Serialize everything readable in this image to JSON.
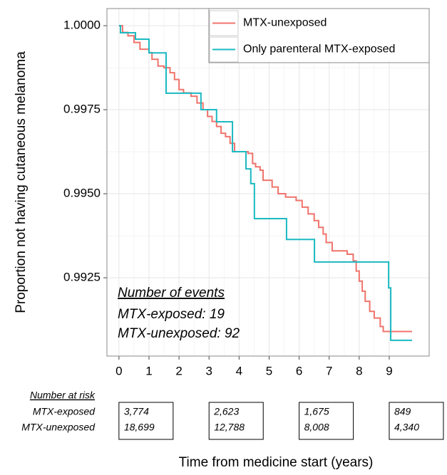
{
  "chart_data": {
    "type": "step",
    "y_label": "Proportion not having cutaneous melanoma",
    "x_label": "Time from medicine start (years)",
    "xlim": [
      -0.4,
      10.33
    ],
    "ylim": [
      0.99017,
      1.00051
    ],
    "xticks": [
      0,
      1,
      2,
      3,
      4,
      5,
      6,
      7,
      8,
      9
    ],
    "yticks": [
      {
        "value": 1.0,
        "label": "1.0000"
      },
      0.9975,
      {
        "value": 0.995,
        "label": "0.9950"
      },
      0.9925
    ],
    "grid": true,
    "minor_grid": true,
    "legend": "top-right",
    "series": [
      {
        "name": "MTX-unexposed",
        "color": "#f0736b",
        "x": [
          0,
          0.12,
          0.3,
          0.5,
          0.7,
          1.0,
          1.1,
          1.3,
          1.5,
          1.7,
          1.85,
          2.0,
          2.15,
          2.4,
          2.6,
          2.8,
          2.95,
          3.1,
          3.25,
          3.4,
          3.55,
          3.7,
          3.85,
          4.3,
          4.45,
          4.55,
          4.7,
          4.8,
          5.1,
          5.3,
          5.55,
          5.9,
          6.1,
          6.3,
          6.5,
          6.65,
          6.8,
          6.9,
          7.1,
          7.6,
          7.8,
          7.9,
          8.0,
          8.1,
          8.2,
          8.35,
          8.5,
          8.7,
          8.8,
          9.76
        ],
        "values": [
          1.0,
          0.9998,
          0.9997,
          0.9995,
          0.9993,
          0.9992,
          0.999,
          0.9988,
          0.99875,
          0.9986,
          0.9984,
          0.9981,
          0.998,
          0.9979,
          0.9977,
          0.9975,
          0.9973,
          0.99715,
          0.997,
          0.9968,
          0.9967,
          0.9965,
          0.99625,
          0.9962,
          0.9959,
          0.9958,
          0.9957,
          0.9954,
          0.9952,
          0.995,
          0.9949,
          0.9948,
          0.9946,
          0.9944,
          0.9942,
          0.994,
          0.9938,
          0.99355,
          0.9933,
          0.9932,
          0.993,
          0.9927,
          0.9924,
          0.9921,
          0.9918,
          0.9915,
          0.9913,
          0.99105,
          0.9909,
          0.9909
        ]
      },
      {
        "name": "Only parenteral MTX-exposed",
        "color": "#1ab9c1",
        "x": [
          0,
          0.05,
          0.55,
          1.0,
          1.57,
          2.73,
          3.25,
          3.78,
          4.23,
          4.39,
          4.51,
          5.58,
          6.51,
          8.98,
          9.05,
          9.76
        ],
        "values": [
          1.0,
          0.99979,
          0.9996,
          0.99919,
          0.99799,
          0.9975,
          0.99714,
          0.99625,
          0.99574,
          0.9953,
          0.99426,
          0.99364,
          0.99297,
          0.9922,
          0.99064,
          0.99064
        ]
      }
    ],
    "events_annotation": {
      "title": "Number of events",
      "lines": [
        "MTX-exposed: 19",
        "MTX-unexposed: 92"
      ]
    },
    "risk_table": {
      "title": "Number at risk",
      "row_names": [
        "MTX-exposed",
        "MTX-unexposed"
      ],
      "times": [
        0,
        3,
        6,
        9
      ],
      "cells": [
        [
          "3,774",
          "18,699"
        ],
        [
          "2,623",
          "12,788"
        ],
        [
          "1,675",
          "8,008"
        ],
        [
          "849",
          "4,340"
        ]
      ]
    }
  }
}
